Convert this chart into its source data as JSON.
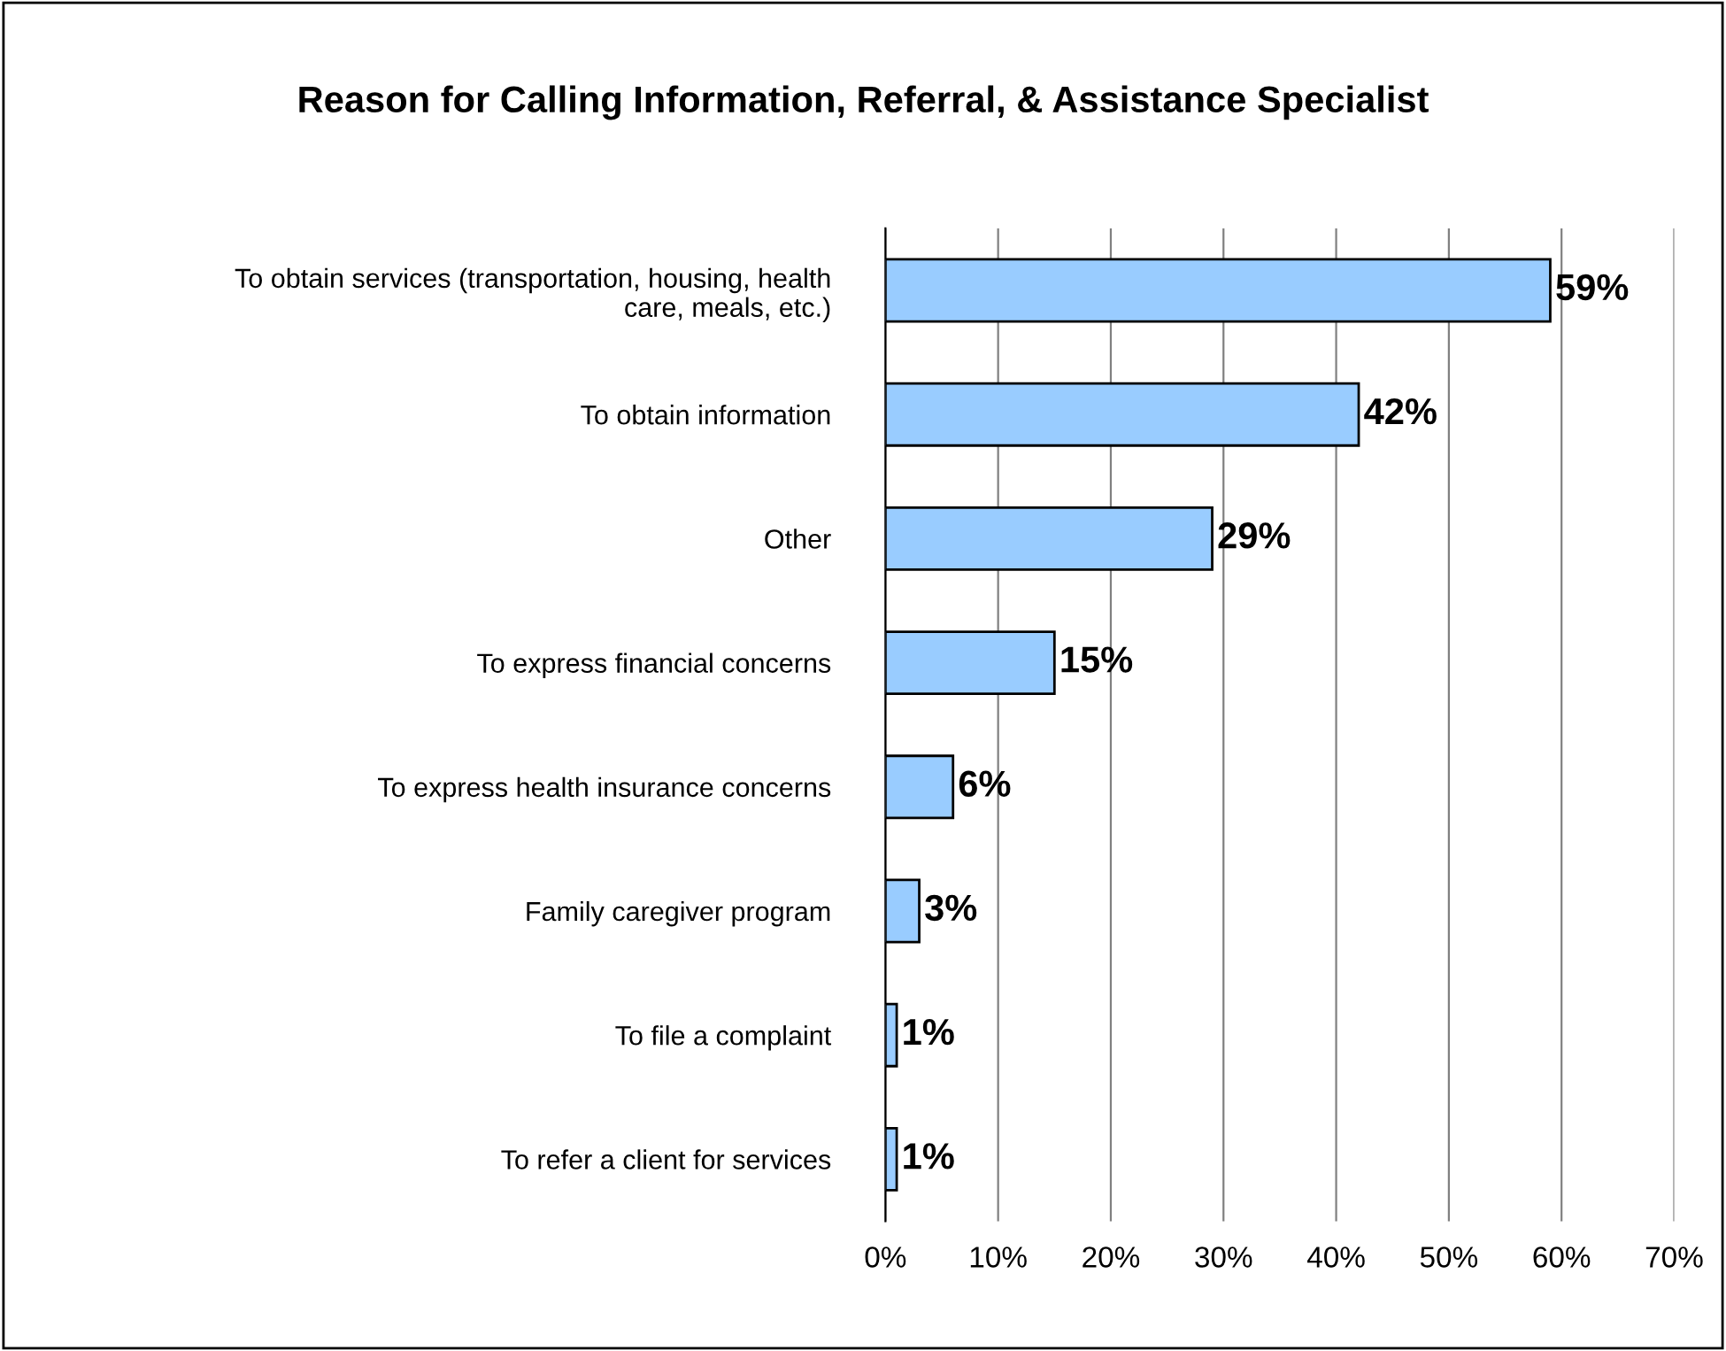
{
  "chart_data": {
    "type": "bar",
    "orientation": "horizontal",
    "title": "Reason for Calling Information, Referral, & Assistance Specialist",
    "categories": [
      "To obtain services (transportation, housing, health\ncare, meals, etc.)",
      "To obtain information",
      "Other",
      "To express financial concerns",
      "To express health insurance concerns",
      "Family caregiver program",
      "To file a complaint",
      "To refer a client for services"
    ],
    "values": [
      59,
      42,
      29,
      15,
      6,
      3,
      1,
      1
    ],
    "value_labels": [
      "59%",
      "42%",
      "29%",
      "15%",
      "6%",
      "3%",
      "1%",
      "1%"
    ],
    "color": "#99ccff",
    "xlim": [
      0,
      70
    ],
    "xticks": [
      {
        "value": 0,
        "label": "0%"
      },
      {
        "value": 10,
        "label": "10%"
      },
      {
        "value": 20,
        "label": "20%"
      },
      {
        "value": 30,
        "label": "30%"
      },
      {
        "value": 40,
        "label": "40%"
      },
      {
        "value": 50,
        "label": "50%"
      },
      {
        "value": 60,
        "label": "60%"
      },
      {
        "value": 70,
        "label": "70%"
      }
    ],
    "grid": "x"
  }
}
